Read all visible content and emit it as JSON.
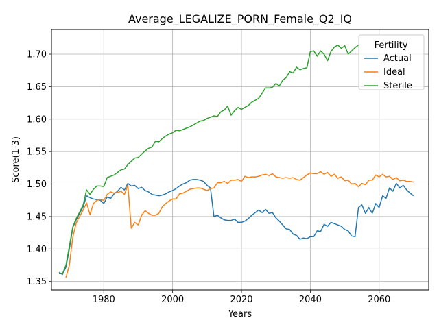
{
  "chart_data": {
    "type": "line",
    "title": "Average_LEGALIZE_PORN_Female_Q2_IQ",
    "xlabel": "Years",
    "ylabel": "Score(1-3)",
    "xlim": [
      1964.8,
      2074.4
    ],
    "ylim": [
      1.337,
      1.738
    ],
    "xticks": [
      1980,
      2000,
      2020,
      2040,
      2060
    ],
    "yticks": [
      1.35,
      1.4,
      1.45,
      1.5,
      1.55,
      1.6,
      1.65,
      1.7
    ],
    "grid": true,
    "legend": {
      "title": "Fertility",
      "position": "top-right"
    },
    "series": [
      {
        "name": "Actual",
        "color": "#1f77b4",
        "x": [
          1967,
          1968,
          1969,
          1970,
          1971,
          1972,
          1973,
          1974,
          1975,
          1976,
          1977,
          1978,
          1979,
          1980,
          1981,
          1982,
          1983,
          1984,
          1985,
          1986,
          1987,
          1988,
          1989,
          1990,
          1991,
          1992,
          1993,
          1994,
          1995,
          1996,
          1997,
          1998,
          1999,
          2000,
          2001,
          2002,
          2003,
          2004,
          2005,
          2006,
          2007,
          2008,
          2009,
          2010,
          2011,
          2012,
          2013,
          2014,
          2015,
          2016,
          2017,
          2018,
          2019,
          2020,
          2021,
          2022,
          2023,
          2024,
          2025,
          2026,
          2027,
          2028,
          2029,
          2030,
          2031,
          2032,
          2033,
          2034,
          2035,
          2036,
          2037,
          2038,
          2039,
          2040,
          2041,
          2042,
          2043,
          2044,
          2045,
          2046,
          2047,
          2048,
          2049,
          2050,
          2051,
          2052,
          2053,
          2054,
          2055,
          2056,
          2057,
          2058,
          2059,
          2060,
          2061,
          2062,
          2063,
          2064,
          2065,
          2066,
          2067,
          2068,
          2069,
          2070
        ],
        "y": [
          1.364,
          1.361,
          1.372,
          1.4,
          1.433,
          1.445,
          1.455,
          1.465,
          1.482,
          1.479,
          1.477,
          1.476,
          1.475,
          1.47,
          1.48,
          1.478,
          1.485,
          1.489,
          1.495,
          1.491,
          1.501,
          1.497,
          1.498,
          1.493,
          1.495,
          1.49,
          1.488,
          1.484,
          1.483,
          1.482,
          1.483,
          1.485,
          1.488,
          1.49,
          1.493,
          1.497,
          1.5,
          1.502,
          1.506,
          1.507,
          1.507,
          1.506,
          1.504,
          1.498,
          1.494,
          1.45,
          1.452,
          1.448,
          1.445,
          1.444,
          1.444,
          1.446,
          1.441,
          1.441,
          1.443,
          1.447,
          1.452,
          1.456,
          1.46,
          1.456,
          1.461,
          1.455,
          1.456,
          1.448,
          1.443,
          1.437,
          1.431,
          1.43,
          1.423,
          1.421,
          1.415,
          1.417,
          1.416,
          1.419,
          1.419,
          1.428,
          1.427,
          1.438,
          1.435,
          1.441,
          1.439,
          1.437,
          1.435,
          1.43,
          1.428,
          1.42,
          1.419,
          1.464,
          1.468,
          1.455,
          1.464,
          1.455,
          1.47,
          1.464,
          1.482,
          1.478,
          1.494,
          1.489,
          1.501,
          1.494,
          1.498,
          1.491,
          1.486,
          1.482
        ]
      },
      {
        "name": "Ideal",
        "color": "#ff7f0e",
        "x": [
          1969,
          1970,
          1971,
          1972,
          1973,
          1974,
          1975,
          1976,
          1977,
          1978,
          1979,
          1980,
          1981,
          1982,
          1983,
          1984,
          1985,
          1986,
          1987,
          1988,
          1989,
          1990,
          1991,
          1992,
          1993,
          1994,
          1995,
          1996,
          1997,
          1998,
          1999,
          2000,
          2001,
          2002,
          2003,
          2004,
          2005,
          2006,
          2007,
          2008,
          2009,
          2010,
          2011,
          2012,
          2013,
          2014,
          2015,
          2016,
          2017,
          2018,
          2019,
          2020,
          2021,
          2022,
          2023,
          2024,
          2025,
          2026,
          2027,
          2028,
          2029,
          2030,
          2031,
          2032,
          2033,
          2034,
          2035,
          2036,
          2037,
          2038,
          2039,
          2040,
          2041,
          2042,
          2043,
          2044,
          2045,
          2046,
          2047,
          2048,
          2049,
          2050,
          2051,
          2052,
          2053,
          2054,
          2055,
          2056,
          2057,
          2058,
          2059,
          2060,
          2061,
          2062,
          2063,
          2064,
          2065,
          2066,
          2067,
          2068,
          2069,
          2070
        ],
        "y": [
          1.356,
          1.375,
          1.418,
          1.44,
          1.45,
          1.46,
          1.471,
          1.453,
          1.47,
          1.475,
          1.476,
          1.475,
          1.484,
          1.488,
          1.486,
          1.487,
          1.489,
          1.484,
          1.498,
          1.432,
          1.441,
          1.437,
          1.452,
          1.459,
          1.455,
          1.452,
          1.452,
          1.455,
          1.465,
          1.47,
          1.474,
          1.477,
          1.477,
          1.485,
          1.486,
          1.489,
          1.492,
          1.493,
          1.494,
          1.494,
          1.492,
          1.49,
          1.493,
          1.494,
          1.502,
          1.502,
          1.504,
          1.501,
          1.506,
          1.506,
          1.507,
          1.504,
          1.512,
          1.51,
          1.511,
          1.511,
          1.512,
          1.514,
          1.515,
          1.513,
          1.516,
          1.511,
          1.51,
          1.509,
          1.51,
          1.509,
          1.51,
          1.507,
          1.506,
          1.51,
          1.514,
          1.517,
          1.516,
          1.516,
          1.519,
          1.515,
          1.518,
          1.512,
          1.515,
          1.509,
          1.511,
          1.505,
          1.506,
          1.5,
          1.501,
          1.496,
          1.501,
          1.499,
          1.506,
          1.506,
          1.514,
          1.511,
          1.515,
          1.511,
          1.512,
          1.507,
          1.51,
          1.505,
          1.506,
          1.504,
          1.504,
          1.503
        ]
      },
      {
        "name": "Sterile",
        "color": "#2ca02c",
        "x": [
          1967,
          1968,
          1969,
          1970,
          1971,
          1972,
          1973,
          1974,
          1975,
          1976,
          1977,
          1978,
          1979,
          1980,
          1981,
          1982,
          1983,
          1984,
          1985,
          1986,
          1987,
          1988,
          1989,
          1990,
          1991,
          1992,
          1993,
          1994,
          1995,
          1996,
          1997,
          1998,
          1999,
          2000,
          2001,
          2002,
          2003,
          2004,
          2005,
          2006,
          2007,
          2008,
          2009,
          2010,
          2011,
          2012,
          2013,
          2014,
          2015,
          2016,
          2017,
          2018,
          2019,
          2020,
          2021,
          2022,
          2023,
          2024,
          2025,
          2026,
          2027,
          2028,
          2029,
          2030,
          2031,
          2032,
          2033,
          2034,
          2035,
          2036,
          2037,
          2038,
          2039,
          2040,
          2041,
          2042,
          2043,
          2044,
          2045,
          2046,
          2047,
          2048,
          2049,
          2050,
          2051,
          2052,
          2053,
          2054
        ],
        "y": [
          1.362,
          1.362,
          1.375,
          1.404,
          1.434,
          1.447,
          1.457,
          1.468,
          1.491,
          1.484,
          1.492,
          1.497,
          1.497,
          1.496,
          1.51,
          1.512,
          1.514,
          1.518,
          1.522,
          1.523,
          1.53,
          1.535,
          1.54,
          1.541,
          1.546,
          1.551,
          1.555,
          1.557,
          1.566,
          1.565,
          1.57,
          1.574,
          1.577,
          1.579,
          1.583,
          1.582,
          1.584,
          1.586,
          1.588,
          1.591,
          1.594,
          1.597,
          1.598,
          1.601,
          1.603,
          1.605,
          1.604,
          1.611,
          1.614,
          1.62,
          1.606,
          1.613,
          1.618,
          1.615,
          1.618,
          1.621,
          1.626,
          1.629,
          1.632,
          1.64,
          1.648,
          1.648,
          1.649,
          1.655,
          1.651,
          1.66,
          1.664,
          1.673,
          1.671,
          1.68,
          1.676,
          1.678,
          1.679,
          1.704,
          1.705,
          1.697,
          1.705,
          1.7,
          1.69,
          1.704,
          1.711,
          1.714,
          1.709,
          1.713,
          1.7,
          1.705,
          1.71,
          1.714
        ]
      }
    ]
  }
}
